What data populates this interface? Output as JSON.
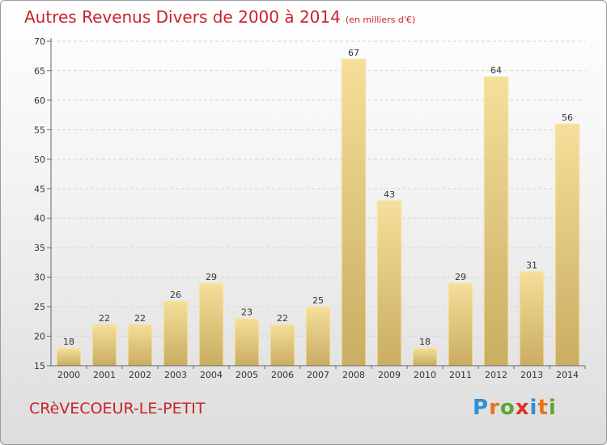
{
  "title": "Autres Revenus Divers de 2000 à 2014",
  "subtitle": "(en milliers d'€)",
  "commune": "CRèVECOEUR-LE-PETIT",
  "logo": {
    "letters": [
      "P",
      "r",
      "o",
      "x",
      "i",
      "t",
      "i"
    ],
    "colors": [
      "#2f8fd8",
      "#e8741a",
      "#5aa832",
      "#e2312c",
      "#2f8fd8",
      "#e8741a",
      "#5aa832"
    ]
  },
  "chart_data": {
    "type": "bar",
    "categories": [
      "2000",
      "2001",
      "2002",
      "2003",
      "2004",
      "2005",
      "2006",
      "2007",
      "2008",
      "2009",
      "2010",
      "2011",
      "2012",
      "2013",
      "2014"
    ],
    "values": [
      18,
      22,
      22,
      26,
      29,
      23,
      22,
      25,
      67,
      43,
      18,
      29,
      64,
      31,
      56
    ],
    "ylim": [
      15,
      70
    ],
    "yticks": [
      15,
      20,
      25,
      30,
      35,
      40,
      45,
      50,
      55,
      60,
      65,
      70
    ],
    "grid": true,
    "bar_color": "#e6cd84"
  }
}
